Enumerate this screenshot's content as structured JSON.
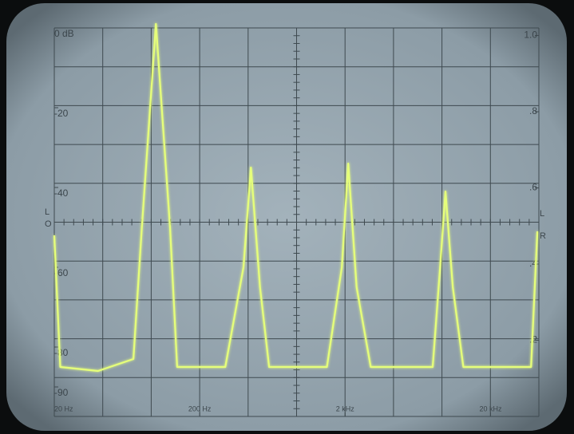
{
  "chart_data": {
    "type": "line",
    "x_scale": "log",
    "x": [
      20,
      22,
      40,
      70,
      80,
      100,
      125,
      140,
      300,
      400,
      450,
      520,
      600,
      1500,
      1900,
      2100,
      2400,
      3000,
      8000,
      9000,
      9800,
      11000,
      13000,
      38000,
      42000
    ],
    "series": [
      {
        "color": "#e6ff7a",
        "values": [
          -52,
          -85,
          -86,
          -83,
          -50,
          1,
          -50,
          -85,
          -85,
          -60,
          -35,
          -65,
          -85,
          -85,
          -60,
          -34,
          -65,
          -85,
          -85,
          -60,
          -41,
          -65,
          -85,
          -85,
          -51
        ]
      }
    ],
    "xlim": [
      20,
      43000
    ],
    "xticks": [
      {
        "value": 20,
        "label": "20 Hz"
      },
      {
        "value": 200,
        "label": "200 Hz"
      },
      {
        "value": 2000,
        "label": "2 kHz"
      },
      {
        "value": 20000,
        "label": "20 kHz"
      }
    ],
    "ylim": [
      -97.4,
      0
    ],
    "yticks": [
      {
        "value": 0,
        "label": "0 dB"
      },
      -20,
      -40,
      -60,
      -80,
      -90
    ],
    "y2lim": [
      0,
      1.02
    ],
    "y2ticks": [
      {
        "value": 1,
        "label": "1.0"
      },
      {
        "value": 0.8,
        "label": ".8"
      },
      {
        "value": 0.6,
        "label": ".6"
      },
      {
        "value": 0.4,
        "label": ".4"
      },
      {
        "value": 0.2,
        "label": ".2"
      }
    ],
    "annotations": [
      "L",
      "O",
      "L",
      "R"
    ]
  }
}
